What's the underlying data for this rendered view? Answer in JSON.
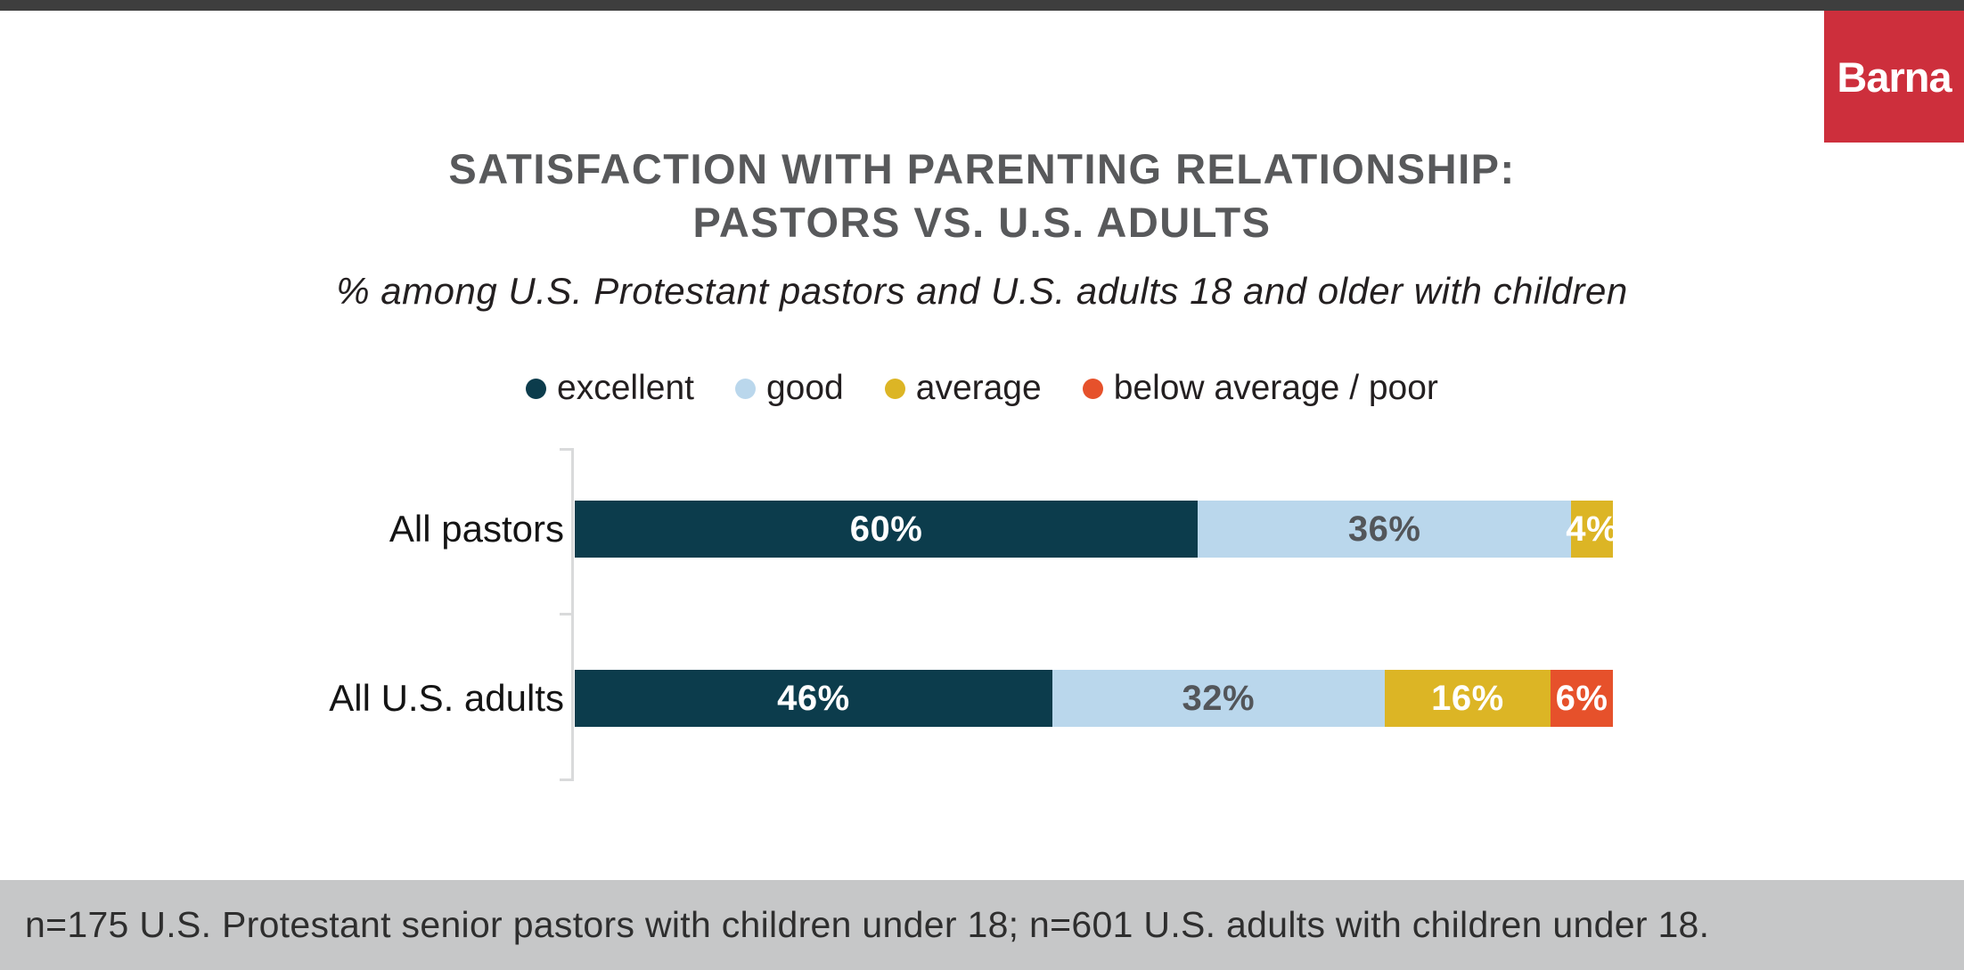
{
  "window": {
    "top_bar_color": "#3e3e3e",
    "background": "#ffffff"
  },
  "logo": {
    "text": "Barna",
    "background": "#cd2f3c",
    "text_color": "#ffffff"
  },
  "header": {
    "title_line1": "SATISFACTION WITH PARENTING RELATIONSHIP:",
    "title_line2": "PASTORS VS. U.S. ADULTS",
    "title_color": "#58595b",
    "subtitle": "% among U.S. Protestant pastors and U.S. adults 18 and older with children"
  },
  "chart_data": {
    "type": "bar",
    "variant": "horizontal-stacked",
    "title": "SATISFACTION WITH PARENTING RELATIONSHIP: PASTORS VS. U.S. ADULTS",
    "subtitle": "% among U.S. Protestant pastors and U.S. adults 18 and older with children",
    "categories": [
      "All pastors",
      "All U.S. adults"
    ],
    "series": [
      {
        "name": "excellent",
        "color": "#0c3c4c",
        "label_color": "#ffffff",
        "values": [
          60,
          46
        ]
      },
      {
        "name": "good",
        "color": "#bad7ec",
        "label_color": "#53565a",
        "values": [
          36,
          32
        ]
      },
      {
        "name": "average",
        "color": "#dcb525",
        "label_color": "#ffffff",
        "values": [
          4,
          16
        ]
      },
      {
        "name": "below average / poor",
        "color": "#e6512b",
        "label_color": "#ffffff",
        "values": [
          0,
          6
        ]
      }
    ],
    "value_suffix": "%",
    "xlim": [
      0,
      100
    ],
    "legend_position": "top",
    "grid": false,
    "axis_color": "#d9dadb"
  },
  "footnote": {
    "text": "n=175 U.S. Protestant senior pastors with children under 18; n=601 U.S. adults with children under 18.",
    "background": "#c6c7c8"
  }
}
